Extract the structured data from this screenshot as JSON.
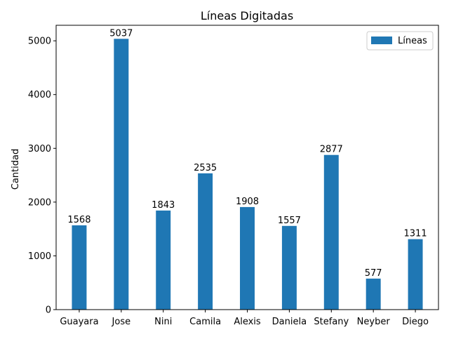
{
  "chart_data": {
    "type": "bar",
    "title": "Líneas Digitadas",
    "xlabel": "",
    "ylabel": "Cantidad",
    "categories": [
      "Guayara",
      "Jose",
      "Nini",
      "Camila",
      "Alexis",
      "Daniela",
      "Stefany",
      "Neyber",
      "Diego"
    ],
    "series": [
      {
        "name": "Líneas",
        "values": [
          1568,
          5037,
          1843,
          2535,
          1908,
          1557,
          2877,
          577,
          1311
        ],
        "color": "#1f77b4"
      }
    ],
    "ylim": [
      0,
      5289
    ],
    "yticks": [
      0,
      1000,
      2000,
      3000,
      4000,
      5000
    ],
    "legend": {
      "position": "top-right"
    },
    "grid": false
  }
}
